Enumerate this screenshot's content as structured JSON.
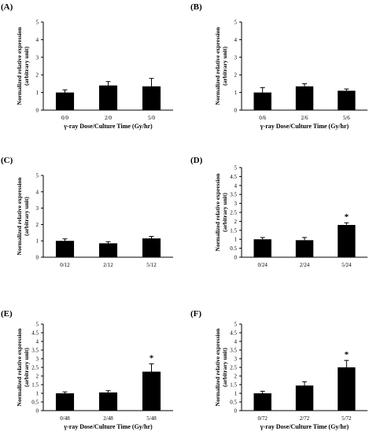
{
  "chart_data": [
    {
      "type": "bar",
      "panel_label": "(A)",
      "categories": [
        "0/0",
        "2/0",
        "5/0"
      ],
      "values": [
        1.0,
        1.4,
        1.35
      ],
      "errors": [
        0.15,
        0.22,
        0.45
      ],
      "significance": [
        "",
        "",
        ""
      ],
      "ylabel_lines": [
        "Normalized relative expression",
        "(arbitrary unit)"
      ],
      "xlabel": "γ-ray Dose/Culture Time (Gy/hr)",
      "ylim": [
        0,
        5
      ],
      "yticks": [
        "0",
        "1",
        "2",
        "3",
        "4",
        "5"
      ]
    },
    {
      "type": "bar",
      "panel_label": "(B)",
      "categories": [
        "0/6",
        "2/6",
        "5/6"
      ],
      "values": [
        1.0,
        1.35,
        1.1
      ],
      "errors": [
        0.28,
        0.15,
        0.1
      ],
      "significance": [
        "",
        "",
        ""
      ],
      "ylabel_lines": [
        "Normalized relative expression",
        "(arbitrary unit)"
      ],
      "xlabel": "γ-ray Dose/Culture Time (Gy/hr)",
      "ylim": [
        0,
        5
      ],
      "yticks": [
        "0",
        "1",
        "2",
        "3",
        "4",
        "5"
      ]
    },
    {
      "type": "bar",
      "panel_label": "(C)",
      "categories": [
        "0/12",
        "2/12",
        "5/12"
      ],
      "values": [
        1.0,
        0.85,
        1.15
      ],
      "errors": [
        0.12,
        0.1,
        0.12
      ],
      "significance": [
        "",
        "",
        ""
      ],
      "ylabel_lines": [
        "Normalized relative expression",
        "(arbitrary unit)"
      ],
      "xlabel": "",
      "ylim": [
        0,
        5
      ],
      "yticks": [
        "0",
        "1",
        "2",
        "3",
        "4",
        "5"
      ]
    },
    {
      "type": "bar",
      "panel_label": "(D)",
      "categories": [
        "0/24",
        "2/24",
        "5/24"
      ],
      "values": [
        1.0,
        0.95,
        1.8
      ],
      "errors": [
        0.1,
        0.15,
        0.12
      ],
      "significance": [
        "",
        "",
        "*"
      ],
      "ylabel_lines": [
        "Normalized relative expression",
        "(arbitrary unit)"
      ],
      "xlabel": "",
      "ylim": [
        0,
        5
      ],
      "yticks": [
        "0",
        "0.5",
        "1",
        "1.5",
        "2",
        "2.5",
        "3",
        "3.5",
        "4",
        "4.5",
        "5"
      ]
    },
    {
      "type": "bar",
      "panel_label": "(E)",
      "categories": [
        "0/48",
        "2/48",
        "5/48"
      ],
      "values": [
        1.0,
        1.05,
        2.25
      ],
      "errors": [
        0.08,
        0.1,
        0.45
      ],
      "significance": [
        "",
        "",
        "*"
      ],
      "ylabel_lines": [
        "Normalized relative expression",
        "(arbitrary unit)"
      ],
      "xlabel": "γ-ray Dose/Culture Time (Gy/hr)",
      "ylim": [
        0,
        5
      ],
      "yticks": [
        "0",
        "0.5",
        "1",
        "1.5",
        "2",
        "2.5",
        "3",
        "3.5",
        "4",
        "4.5",
        "5"
      ]
    },
    {
      "type": "bar",
      "panel_label": "(F)",
      "categories": [
        "0/72",
        "2/72",
        "5/72"
      ],
      "values": [
        1.0,
        1.45,
        2.5
      ],
      "errors": [
        0.12,
        0.22,
        0.4
      ],
      "significance": [
        "",
        "",
        "*"
      ],
      "ylabel_lines": [
        "Normalized relative expression",
        "(arbitrary unit)"
      ],
      "xlabel": "γ-ray Dose/Culture Time (Gy/hr)",
      "ylim": [
        0,
        5
      ],
      "yticks": [
        "0",
        "0.5",
        "1",
        "1.5",
        "2",
        "2.5",
        "3",
        "3.5",
        "4",
        "4.5",
        "5"
      ]
    }
  ]
}
